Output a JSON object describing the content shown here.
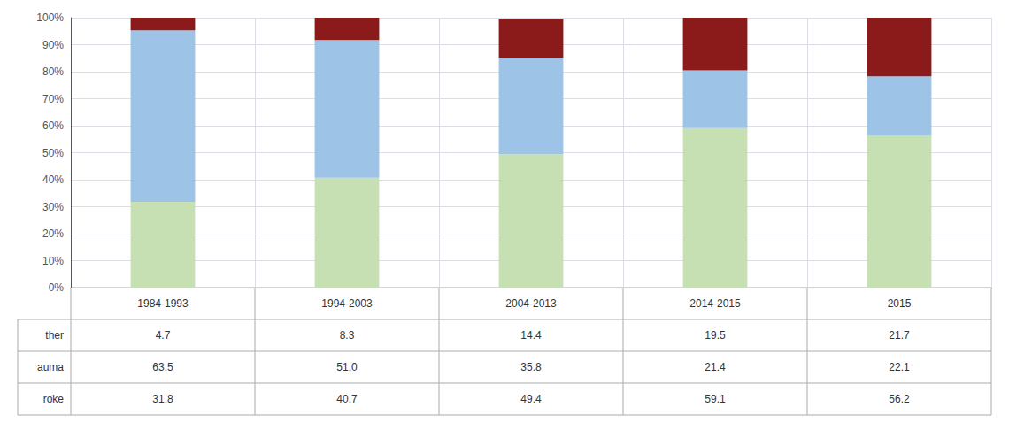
{
  "chart_data": {
    "type": "bar",
    "stacked": true,
    "grid": true,
    "categories": [
      "1984-1993",
      "1994-2003",
      "2004-2013",
      "2014-2015",
      "2015"
    ],
    "series": [
      {
        "name": "roke",
        "color": "#c6e0b4",
        "values": [
          31.8,
          40.7,
          49.4,
          59.1,
          56.2
        ],
        "value_labels": [
          "31.8",
          "40.7",
          "49.4",
          "59.1",
          "56.2"
        ]
      },
      {
        "name": "auma",
        "color": "#9dc3e6",
        "values": [
          63.5,
          51.0,
          35.8,
          21.4,
          22.1
        ],
        "value_labels": [
          "63.5",
          "51,0",
          "35.8",
          "21.4",
          "22.1"
        ]
      },
      {
        "name": "ther",
        "color": "#8b1a1a",
        "values": [
          4.7,
          8.3,
          14.4,
          19.5,
          21.7
        ],
        "value_labels": [
          "4.7",
          "8.3",
          "14.4",
          "19.5",
          "21.7"
        ]
      }
    ],
    "ylim": [
      0,
      100
    ],
    "yticks": [
      {
        "value": 0,
        "label": "0%"
      },
      {
        "value": 10,
        "label": "10%"
      },
      {
        "value": 20,
        "label": "20%"
      },
      {
        "value": 30,
        "label": "30%"
      },
      {
        "value": 40,
        "label": "40%"
      },
      {
        "value": 50,
        "label": "50%"
      },
      {
        "value": 60,
        "label": "60%"
      },
      {
        "value": 70,
        "label": "70%"
      },
      {
        "value": 80,
        "label": "80%"
      },
      {
        "value": 90,
        "label": "90%"
      },
      {
        "value": 100,
        "label": "100%"
      }
    ]
  }
}
